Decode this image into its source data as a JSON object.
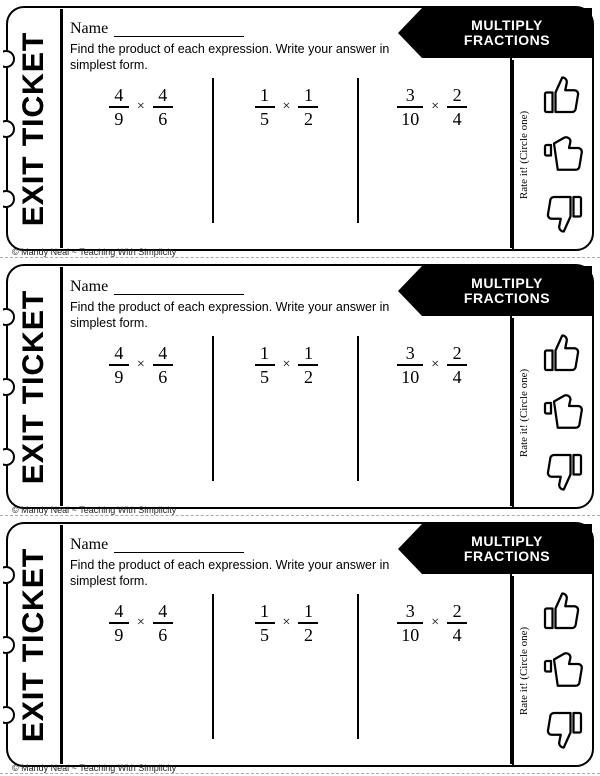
{
  "ticket_label": "EXIT TICKET",
  "name_label": "Name",
  "banner_line1": "MULTIPLY",
  "banner_line2": "FRACTIONS",
  "instructions": "Find the product of each expression. Write your answer in simplest form.",
  "rate_label": "Rate it! (Circle one)",
  "copyright": "© Mandy Neal ~ Teaching With Simplicity",
  "operator": "×",
  "problems": [
    {
      "a_num": "4",
      "a_den": "9",
      "b_num": "4",
      "b_den": "6"
    },
    {
      "a_num": "1",
      "a_den": "5",
      "b_num": "1",
      "b_den": "2"
    },
    {
      "a_num": "3",
      "a_den": "10",
      "b_num": "2",
      "b_den": "4"
    }
  ],
  "colors": {
    "ink": "#000000",
    "paper": "#ffffff"
  },
  "ticket_count": 3
}
